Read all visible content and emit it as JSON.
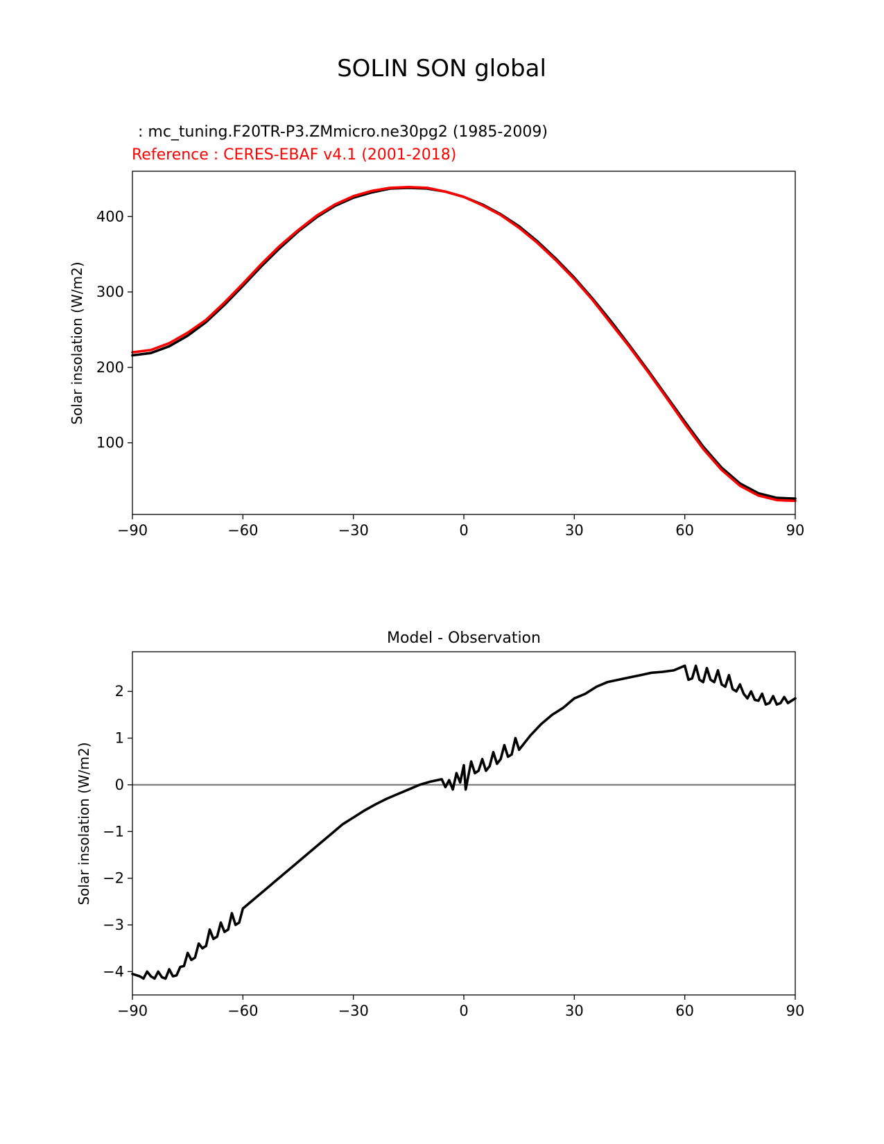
{
  "figure": {
    "title": "SOLIN SON global",
    "test_label": " : mc_tuning.F20TR-P3.ZMmicro.ne30pg2 (1985-2009)",
    "reference_label": "Reference : CERES-EBAF v4.1 (2001-2018)",
    "colors": {
      "test": "#000000",
      "reference": "#ff0000",
      "zero_line": "#808080"
    }
  },
  "chart_data": [
    {
      "type": "line",
      "title": "",
      "xlabel": "",
      "ylabel": "Solar insolation (W/m2)",
      "xlim": [
        -90,
        90
      ],
      "ylim": [
        5,
        460
      ],
      "xticks": [
        -90,
        -60,
        -30,
        0,
        30,
        60,
        90
      ],
      "xtick_labels": [
        "−90",
        "−60",
        "−30",
        "0",
        "30",
        "60",
        "90"
      ],
      "yticks": [
        100,
        200,
        300,
        400
      ],
      "ytick_labels": [
        "100",
        "200",
        "300",
        "400"
      ],
      "grid": false,
      "series": [
        {
          "name": "mc_tuning.F20TR-P3.ZMmicro.ne30pg2",
          "color": "#000000",
          "x": [
            -90,
            -85,
            -80,
            -75,
            -70,
            -65,
            -60,
            -55,
            -50,
            -45,
            -40,
            -35,
            -30,
            -25,
            -20,
            -15,
            -10,
            -5,
            0,
            5,
            10,
            15,
            20,
            25,
            30,
            35,
            40,
            45,
            50,
            55,
            60,
            65,
            70,
            75,
            80,
            85,
            90
          ],
          "values": [
            216,
            219,
            228,
            242,
            260,
            283,
            308,
            334,
            358,
            380,
            399,
            414,
            425,
            432,
            437,
            438,
            437,
            433,
            426,
            416,
            403,
            387,
            367,
            344,
            319,
            291,
            261,
            229,
            196,
            162,
            128,
            95,
            67,
            46,
            33,
            27,
            26
          ]
        },
        {
          "name": "CERES-EBAF v4.1",
          "color": "#ff0000",
          "x": [
            -90,
            -85,
            -80,
            -75,
            -70,
            -65,
            -60,
            -55,
            -50,
            -45,
            -40,
            -35,
            -30,
            -25,
            -20,
            -15,
            -10,
            -5,
            0,
            5,
            10,
            15,
            20,
            25,
            30,
            35,
            40,
            45,
            50,
            55,
            60,
            65,
            70,
            75,
            80,
            85,
            90
          ],
          "values": [
            220,
            223,
            232,
            246,
            263,
            286,
            311,
            337,
            361,
            382,
            401,
            416,
            427,
            434,
            438,
            439,
            438,
            433,
            426,
            415,
            402,
            385,
            365,
            342,
            317,
            289,
            258,
            227,
            194,
            160,
            125,
            92,
            64,
            43,
            30,
            24,
            23
          ]
        }
      ]
    },
    {
      "type": "line",
      "title": "Model - Observation",
      "xlabel": "",
      "ylabel": "Solar insolation (W/m2)",
      "xlim": [
        -90,
        90
      ],
      "ylim": [
        -4.5,
        2.85
      ],
      "xticks": [
        -90,
        -60,
        -30,
        0,
        30,
        60,
        90
      ],
      "xtick_labels": [
        "−90",
        "−60",
        "−30",
        "0",
        "30",
        "60",
        "90"
      ],
      "yticks": [
        -4,
        -3,
        -2,
        -1,
        0,
        1,
        2
      ],
      "ytick_labels": [
        "−4",
        "−3",
        "−2",
        "−1",
        "0",
        "1",
        "2"
      ],
      "grid": false,
      "zero_line": 0,
      "series": [
        {
          "name": "",
          "color": "#000000",
          "x": [
            -90,
            -88,
            -87,
            -86,
            -85,
            -84,
            -83,
            -82,
            -81,
            -80,
            -79,
            -78,
            -77,
            -76,
            -75,
            -74,
            -73,
            -72,
            -71,
            -70,
            -69,
            -68,
            -67,
            -66,
            -65,
            -64,
            -63,
            -62,
            -61,
            -60,
            -57,
            -54,
            -51,
            -48,
            -45,
            -42,
            -39,
            -36,
            -33,
            -30,
            -27,
            -24,
            -21,
            -18,
            -15,
            -12,
            -9,
            -6,
            -5,
            -4,
            -3,
            -2,
            -1,
            0,
            0.5,
            1,
            2,
            3,
            4,
            5,
            6,
            7,
            8,
            9,
            10,
            11,
            12,
            13,
            14,
            15,
            18,
            21,
            24,
            27,
            30,
            33,
            36,
            39,
            42,
            45,
            48,
            51,
            54,
            57,
            60,
            61,
            62,
            63,
            64,
            65,
            66,
            67,
            68,
            69,
            70,
            71,
            72,
            73,
            74,
            75,
            76,
            77,
            78,
            79,
            80,
            81,
            82,
            83,
            84,
            85,
            86,
            87,
            88,
            89,
            90
          ],
          "values": [
            -4.05,
            -4.1,
            -4.15,
            -4.0,
            -4.1,
            -4.15,
            -4.0,
            -4.12,
            -4.15,
            -3.95,
            -4.1,
            -4.08,
            -3.9,
            -3.88,
            -3.6,
            -3.75,
            -3.7,
            -3.4,
            -3.5,
            -3.45,
            -3.1,
            -3.3,
            -3.25,
            -2.95,
            -3.15,
            -3.1,
            -2.75,
            -3.0,
            -2.95,
            -2.65,
            -2.45,
            -2.25,
            -2.05,
            -1.85,
            -1.65,
            -1.45,
            -1.25,
            -1.05,
            -0.85,
            -0.7,
            -0.55,
            -0.42,
            -0.3,
            -0.2,
            -0.1,
            0.0,
            0.07,
            0.12,
            -0.05,
            0.1,
            -0.1,
            0.25,
            0.05,
            0.42,
            -0.1,
            0.1,
            0.5,
            0.25,
            0.3,
            0.55,
            0.3,
            0.4,
            0.7,
            0.45,
            0.55,
            0.85,
            0.6,
            0.65,
            1.0,
            0.75,
            1.05,
            1.3,
            1.5,
            1.65,
            1.85,
            1.95,
            2.1,
            2.2,
            2.25,
            2.3,
            2.35,
            2.4,
            2.42,
            2.45,
            2.55,
            2.25,
            2.28,
            2.55,
            2.25,
            2.2,
            2.5,
            2.25,
            2.2,
            2.45,
            2.15,
            2.1,
            2.35,
            2.05,
            2.0,
            2.15,
            1.95,
            1.85,
            2.0,
            1.82,
            1.8,
            1.95,
            1.72,
            1.75,
            1.9,
            1.72,
            1.75,
            1.88,
            1.75,
            1.8,
            1.85
          ]
        }
      ]
    }
  ]
}
